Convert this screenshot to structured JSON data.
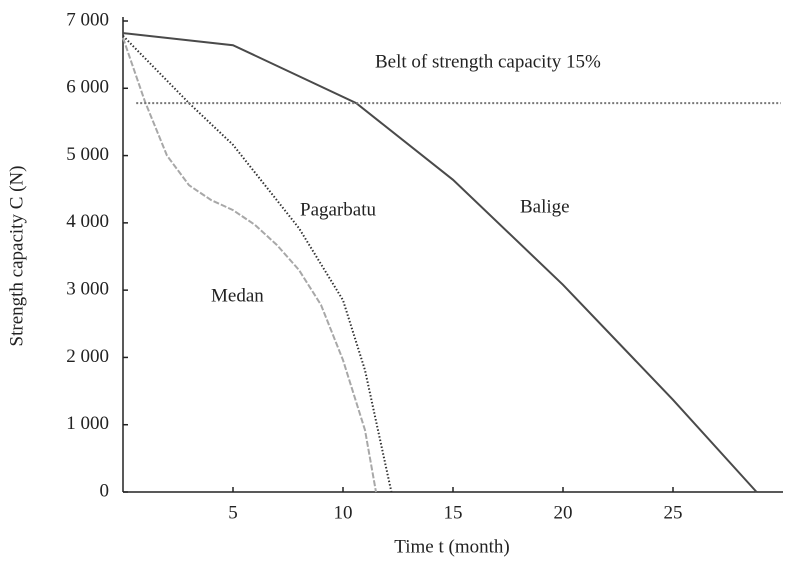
{
  "chart_data": {
    "type": "line",
    "xlabel": "Time t (month)",
    "ylabel": "Strength capacity C (N)",
    "xlim": [
      0,
      30
    ],
    "ylim": [
      0,
      7000
    ],
    "xticks": [
      5,
      10,
      15,
      20,
      25
    ],
    "yticks": [
      0,
      {
        "value": 1000,
        "label": "1 000"
      },
      {
        "value": 2000,
        "label": "2 000"
      },
      {
        "value": 3000,
        "label": "3 000"
      },
      {
        "value": 4000,
        "label": "4 000"
      },
      {
        "value": 5000,
        "label": "5 000"
      },
      {
        "value": 6000,
        "label": "6 000"
      },
      {
        "value": 7000,
        "label": "7 000"
      }
    ],
    "series": [
      {
        "name": "Balige",
        "color": "#4a4a4a",
        "dash": "none",
        "x": [
          0,
          5,
          10.6,
          15,
          20,
          25,
          28.8
        ],
        "values": [
          6820,
          6640,
          5780,
          4640,
          3080,
          1370,
          0
        ]
      },
      {
        "name": "Pagarbatu",
        "color": "#333333",
        "dash": "1.5 2",
        "x": [
          0,
          3,
          5,
          8,
          10,
          11,
          12.2
        ],
        "values": [
          6780,
          5780,
          5160,
          3920,
          2850,
          1810,
          0
        ]
      },
      {
        "name": "Medan",
        "color": "#a8a8a8",
        "dash": "6 2",
        "x": [
          0,
          1,
          2,
          3,
          4,
          5,
          6,
          7,
          8,
          9,
          10,
          11,
          11.5
        ],
        "values": [
          6750,
          5800,
          5000,
          4560,
          4340,
          4190,
          3970,
          3670,
          3300,
          2780,
          1960,
          920,
          0
        ]
      },
      {
        "name": "Belt of strength capacity 15%",
        "color": "#777777",
        "dash": "2 2",
        "x": [
          0.6,
          29.9
        ],
        "values": [
          5780,
          5780
        ]
      }
    ]
  }
}
